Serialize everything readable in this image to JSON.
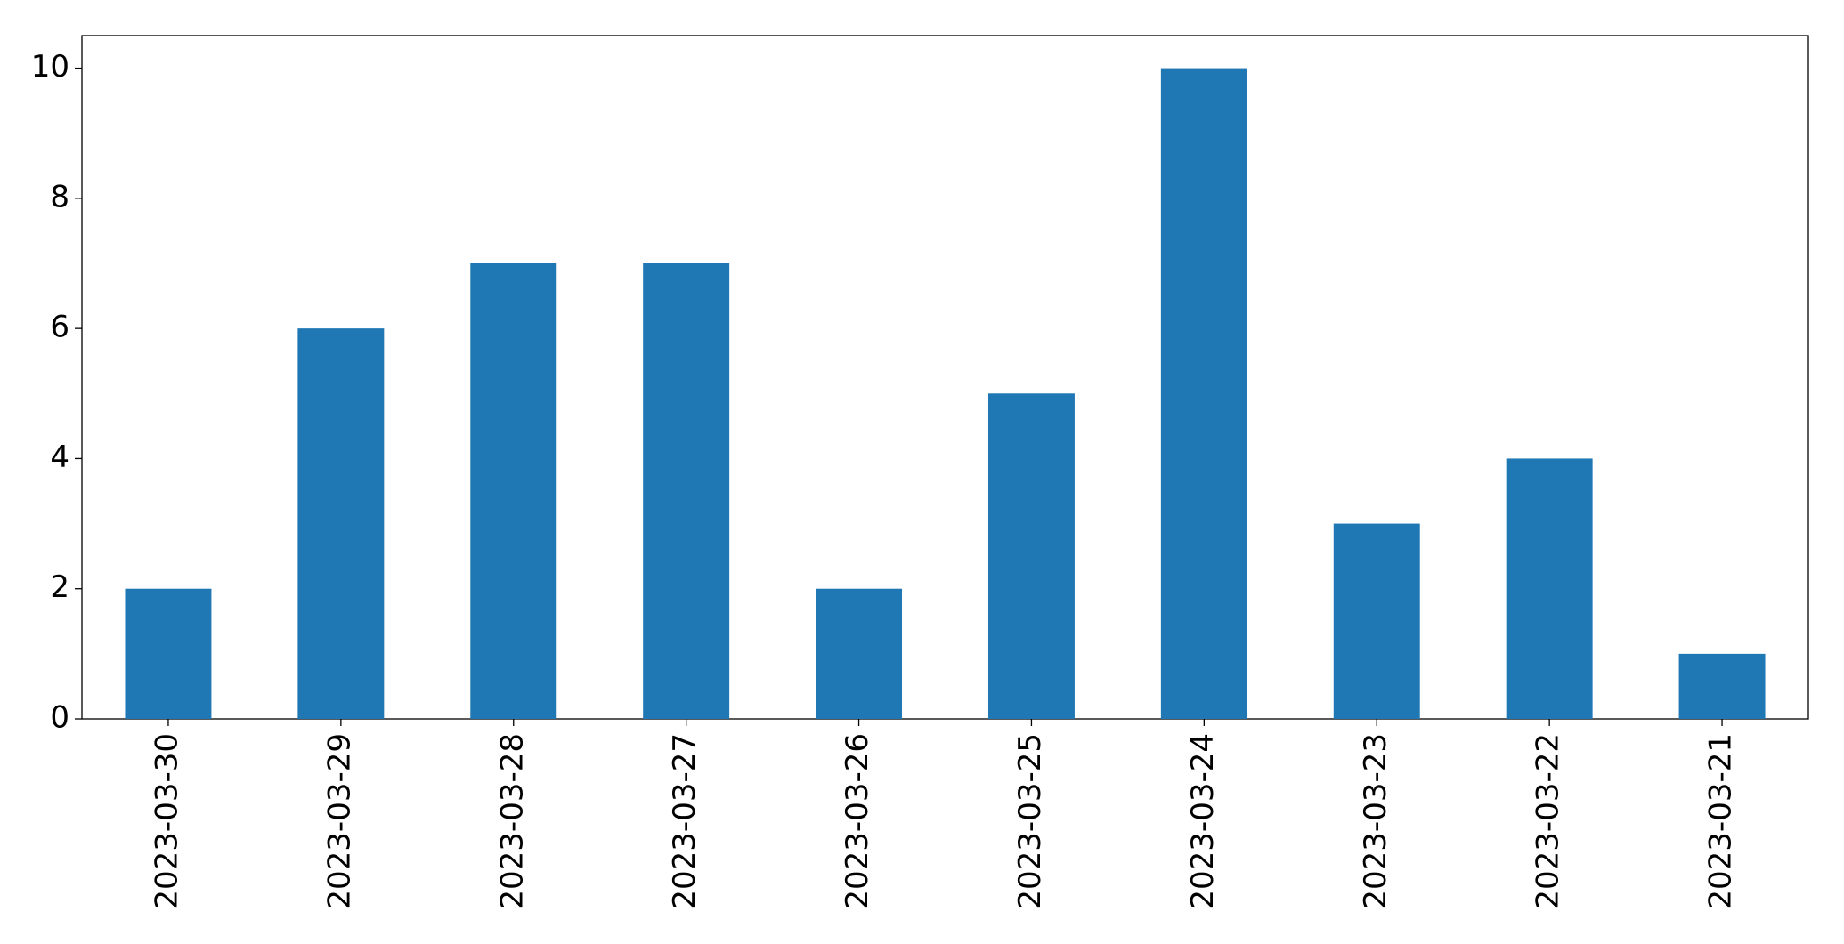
{
  "chart_data": {
    "type": "bar",
    "categories": [
      "2023-03-30",
      "2023-03-29",
      "2023-03-28",
      "2023-03-27",
      "2023-03-26",
      "2023-03-25",
      "2023-03-24",
      "2023-03-23",
      "2023-03-22",
      "2023-03-21"
    ],
    "values": [
      2,
      6,
      7,
      7,
      2,
      5,
      10,
      3,
      4,
      1
    ],
    "color": "#1f77b4",
    "ylim": [
      0,
      10.5
    ],
    "yticks": [
      0,
      2,
      4,
      6,
      8,
      10
    ],
    "grid": false
  }
}
